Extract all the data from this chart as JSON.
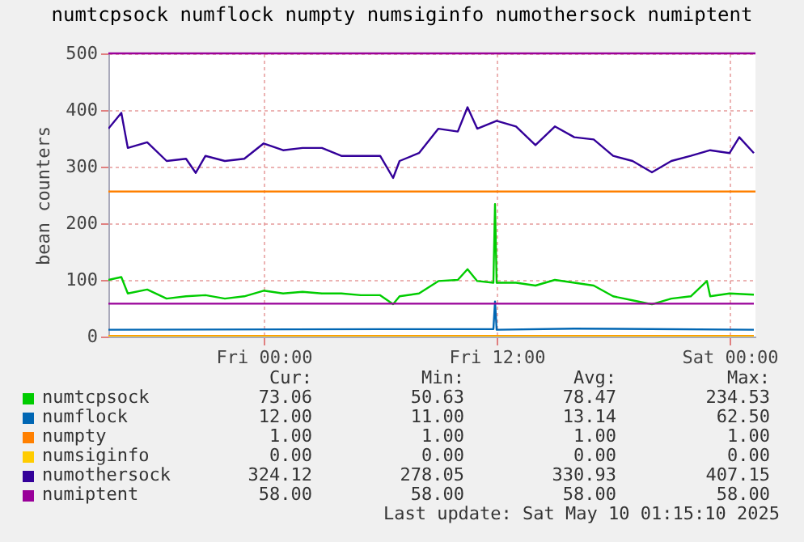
{
  "chart_data": {
    "type": "line",
    "title": "numtcpsock numflock numpty numsiginfo numothersock numiptent",
    "ylabel": "bean counters",
    "xlim": [
      "2025-05-08T16:00",
      "2025-05-10T01:20"
    ],
    "xticks": [
      {
        "value": "2025-05-09T00:00",
        "label": "Fri 00:00"
      },
      {
        "value": "2025-05-09T12:00",
        "label": "Fri 12:00"
      },
      {
        "value": "2025-05-10T00:00",
        "label": "Sat 00:00"
      }
    ],
    "ylim": [
      0,
      500
    ],
    "yticks": [
      0,
      100,
      200,
      300,
      400,
      500
    ],
    "grid": true,
    "legend": "bottom",
    "marker": "none",
    "line_style": "solid",
    "series": [
      {
        "name": "numtcpsock",
        "color": "#00cc00",
        "x": [
          "2025-05-08T16:00",
          "2025-05-08T16:40",
          "2025-05-08T17:00",
          "2025-05-08T18:00",
          "2025-05-08T19:00",
          "2025-05-08T20:00",
          "2025-05-08T21:00",
          "2025-05-08T22:00",
          "2025-05-08T23:00",
          "2025-05-09T00:00",
          "2025-05-09T01:00",
          "2025-05-09T02:00",
          "2025-05-09T03:00",
          "2025-05-09T04:00",
          "2025-05-09T05:00",
          "2025-05-09T06:00",
          "2025-05-09T06:40",
          "2025-05-09T07:00",
          "2025-05-09T08:00",
          "2025-05-09T09:00",
          "2025-05-09T10:00",
          "2025-05-09T10:30",
          "2025-05-09T11:00",
          "2025-05-09T11:50",
          "2025-05-09T11:55",
          "2025-05-09T12:00",
          "2025-05-09T13:00",
          "2025-05-09T14:00",
          "2025-05-09T15:00",
          "2025-05-09T16:00",
          "2025-05-09T17:00",
          "2025-05-09T18:00",
          "2025-05-09T19:00",
          "2025-05-09T20:00",
          "2025-05-09T21:00",
          "2025-05-09T22:00",
          "2025-05-09T22:50",
          "2025-05-09T23:00",
          "2025-05-10T00:00",
          "2025-05-10T01:15"
        ],
        "values": [
          100,
          105,
          76,
          83,
          67,
          71,
          73,
          67,
          71,
          81,
          76,
          79,
          76,
          76,
          73,
          73,
          57,
          71,
          76,
          98,
          100,
          119,
          98,
          95,
          234,
          95,
          95,
          90,
          100,
          95,
          90,
          71,
          64,
          57,
          67,
          71,
          98,
          71,
          76,
          74
        ]
      },
      {
        "name": "numflock",
        "color": "#0066b3",
        "x": [
          "2025-05-08T16:00",
          "2025-05-09T06:00",
          "2025-05-09T11:50",
          "2025-05-09T11:55",
          "2025-05-09T12:00",
          "2025-05-09T16:00",
          "2025-05-10T01:15"
        ],
        "values": [
          12,
          13,
          13,
          62,
          12,
          14,
          12
        ]
      },
      {
        "name": "numpty",
        "color": "#ff8000",
        "x": [
          "2025-05-08T16:00",
          "2025-05-10T01:15"
        ],
        "values": [
          1,
          1
        ]
      },
      {
        "name": "numsiginfo",
        "color": "#ffcc00",
        "x": [
          "2025-05-08T16:00",
          "2025-05-10T01:15"
        ],
        "values": [
          0,
          0
        ]
      },
      {
        "name": "numothersock",
        "color": "#330099",
        "x": [
          "2025-05-08T16:00",
          "2025-05-08T16:40",
          "2025-05-08T17:00",
          "2025-05-08T18:00",
          "2025-05-08T19:00",
          "2025-05-08T20:00",
          "2025-05-08T20:30",
          "2025-05-08T21:00",
          "2025-05-08T22:00",
          "2025-05-08T23:00",
          "2025-05-09T00:00",
          "2025-05-09T01:00",
          "2025-05-09T02:00",
          "2025-05-09T03:00",
          "2025-05-09T04:00",
          "2025-05-09T05:00",
          "2025-05-09T06:00",
          "2025-05-09T06:40",
          "2025-05-09T07:00",
          "2025-05-09T08:00",
          "2025-05-09T09:00",
          "2025-05-09T10:00",
          "2025-05-09T10:30",
          "2025-05-09T11:00",
          "2025-05-09T12:00",
          "2025-05-09T13:00",
          "2025-05-09T14:00",
          "2025-05-09T15:00",
          "2025-05-09T16:00",
          "2025-05-09T17:00",
          "2025-05-09T18:00",
          "2025-05-09T19:00",
          "2025-05-09T20:00",
          "2025-05-09T21:00",
          "2025-05-09T22:00",
          "2025-05-09T23:00",
          "2025-05-10T00:00",
          "2025-05-10T00:30",
          "2025-05-10T01:15"
        ],
        "values": [
          367,
          395,
          333,
          343,
          310,
          314,
          289,
          319,
          310,
          314,
          341,
          329,
          333,
          333,
          319,
          319,
          319,
          280,
          310,
          324,
          367,
          362,
          405,
          367,
          381,
          371,
          338,
          371,
          352,
          348,
          319,
          310,
          290,
          310,
          319,
          329,
          324,
          352,
          324
        ]
      },
      {
        "name": "numiptent",
        "color": "#990099",
        "x": [
          "2025-05-08T16:00",
          "2025-05-10T01:15"
        ],
        "values": [
          58,
          58
        ]
      }
    ],
    "ref_lines": [
      {
        "axis": "y",
        "value": 500,
        "color": "#990099"
      },
      {
        "axis": "y",
        "value": 256,
        "color": "#ff8000"
      }
    ],
    "annotations": [
      "Cur:",
      "Min:",
      "Avg:",
      "Max:",
      "73.06",
      "50.63",
      "78.47",
      "234.53",
      "12.00",
      "11.00",
      "13.14",
      "62.50",
      "1.00",
      "1.00",
      "1.00",
      "1.00",
      "0.00",
      "0.00",
      "0.00",
      "0.00",
      "324.12",
      "278.05",
      "330.93",
      "407.15",
      "58.00",
      "58.00",
      "58.00",
      "58.00",
      "Last update: Sat May 10 01:15:10 2025"
    ]
  }
}
